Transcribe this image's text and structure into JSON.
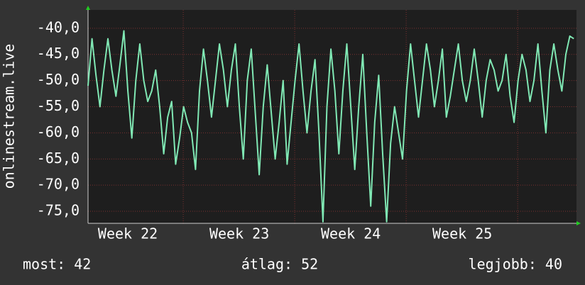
{
  "chart_data": {
    "type": "line",
    "ylabel": "onlinestream.live",
    "x": [
      0,
      0.25,
      0.5,
      0.75,
      1,
      1.25,
      1.5,
      1.75,
      2,
      2.25,
      2.5,
      2.75,
      3,
      3.25,
      3.5,
      3.75,
      4,
      4.25,
      4.5,
      4.75,
      5,
      5.25,
      5.5,
      5.75,
      6,
      6.25,
      6.5,
      6.75,
      7,
      7.25,
      7.5,
      7.75,
      8,
      8.25,
      8.5,
      8.75,
      9,
      9.25,
      9.5,
      9.75,
      10,
      10.25,
      10.5,
      10.75,
      11,
      11.25,
      11.5,
      11.75,
      12,
      12.25,
      12.5,
      12.75,
      13,
      13.25,
      13.5,
      13.75,
      14,
      14.25,
      14.5,
      14.75,
      15,
      15.25,
      15.5,
      15.75,
      16,
      16.25,
      16.5,
      16.75,
      17,
      17.25,
      17.5,
      17.75,
      18,
      18.25,
      18.5,
      18.75,
      19,
      19.25,
      19.5,
      19.75,
      20,
      20.25,
      20.5,
      20.75,
      21,
      21.25,
      21.5,
      21.75,
      22,
      22.25,
      22.5,
      22.75,
      23,
      23.25,
      23.5,
      23.75,
      24,
      24.25,
      24.5,
      24.75,
      25,
      25.25,
      25.5,
      25.75,
      26,
      26.25,
      26.5,
      26.75,
      27,
      27.25,
      27.5,
      27.75,
      28,
      28.25,
      28.5,
      28.75,
      29,
      29.25,
      29.5,
      29.75,
      30,
      30.25,
      30.5
    ],
    "series": [
      {
        "color": "#80e8b4",
        "values": [
          -51,
          -42,
          -49,
          -55,
          -48,
          -42,
          -48,
          -53,
          -47,
          -40.5,
          -52,
          -61,
          -50,
          -43,
          -50,
          -54,
          -52,
          -48,
          -55,
          -64,
          -57,
          -54,
          -66,
          -61,
          -55,
          -58,
          -60,
          -67,
          -52,
          -44,
          -50,
          -57,
          -50,
          -43,
          -48,
          -55,
          -48,
          -43,
          -55,
          -65,
          -50,
          -44,
          -56,
          -68,
          -55,
          -47,
          -56,
          -65,
          -58,
          -50,
          -66,
          -58,
          -50,
          -43,
          -52,
          -60,
          -52,
          -46,
          -60,
          -77,
          -55,
          -44,
          -52,
          -64,
          -52,
          -43,
          -55,
          -67,
          -55,
          -45,
          -60,
          -74,
          -58,
          -49,
          -64,
          -77,
          -62,
          -55,
          -60,
          -65,
          -52,
          -43,
          -50,
          -57,
          -50,
          -43,
          -48,
          -55,
          -50,
          -44,
          -57,
          -53,
          -48,
          -43,
          -50,
          -54,
          -50,
          -44,
          -50,
          -57,
          -50,
          -46,
          -48,
          -52,
          -50,
          -45,
          -53,
          -58,
          -50,
          -45,
          -48,
          -54,
          -50,
          -43,
          -52,
          -60,
          -48,
          -43,
          -48,
          -52,
          -45,
          -41.5,
          -42
        ]
      }
    ],
    "xlim": [
      0,
      30.67
    ],
    "xticks": [
      {
        "value": 2.5,
        "label": "Week 22"
      },
      {
        "value": 9.5,
        "label": "Week 23"
      },
      {
        "value": 16.5,
        "label": "Week 24"
      },
      {
        "value": 23.5,
        "label": "Week 25"
      }
    ],
    "ylim": [
      -77.3,
      -36.5
    ],
    "yticks": [
      {
        "value": -40,
        "label": "-40,0"
      },
      {
        "value": -45,
        "label": "-45,0"
      },
      {
        "value": -50,
        "label": "-50,0"
      },
      {
        "value": -55,
        "label": "-55,0"
      },
      {
        "value": -60,
        "label": "-60,0"
      },
      {
        "value": -65,
        "label": "-65,0"
      },
      {
        "value": -70,
        "label": "-70,0"
      },
      {
        "value": -75,
        "label": "-75,0"
      }
    ],
    "grid": true,
    "footer": [
      "most: 42",
      "átlag: 52",
      "legjobb: 40"
    ]
  }
}
